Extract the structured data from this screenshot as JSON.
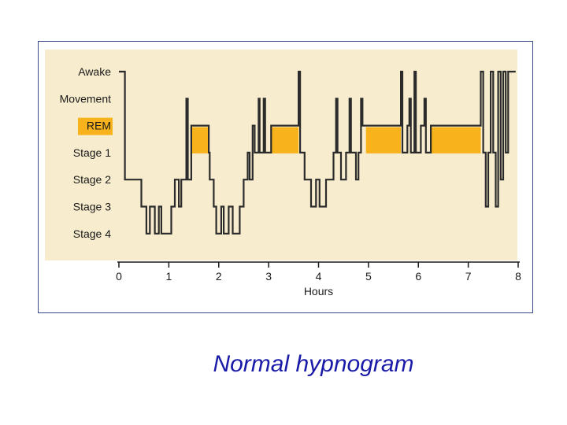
{
  "caption": "Normal hypnogram",
  "colors": {
    "panel_bg": "#f7eccd",
    "rem_fill": "#f7b21c",
    "trace": "#2b2b2b",
    "caption": "#1a1aa8",
    "frame": "#3a4a8a"
  },
  "chart_data": {
    "type": "line",
    "title": "",
    "xlabel": "Hours",
    "ylabel": "",
    "xlim": [
      0,
      8
    ],
    "x_ticks": [
      "0",
      "1",
      "2",
      "3",
      "4",
      "5",
      "6",
      "7",
      "8"
    ],
    "stages": [
      "Awake",
      "Movement",
      "REM",
      "Stage 1",
      "Stage 2",
      "Stage 3",
      "Stage 4"
    ],
    "highlighted_stage": "REM",
    "rem_periods": [
      {
        "start": 1.45,
        "end": 1.8
      },
      {
        "start": 3.05,
        "end": 3.6
      },
      {
        "start": 4.95,
        "end": 5.65
      },
      {
        "start": 6.25,
        "end": 7.25
      }
    ],
    "series": [
      {
        "points": [
          [
            0,
            0
          ],
          [
            0.12,
            0
          ],
          [
            0.12,
            4
          ],
          [
            0.45,
            4
          ],
          [
            0.45,
            5
          ],
          [
            0.55,
            5
          ],
          [
            0.55,
            6
          ],
          [
            0.62,
            6
          ],
          [
            0.62,
            5
          ],
          [
            0.72,
            5
          ],
          [
            0.72,
            6
          ],
          [
            0.8,
            6
          ],
          [
            0.8,
            5
          ],
          [
            0.85,
            5
          ],
          [
            0.85,
            6
          ],
          [
            1.05,
            6
          ],
          [
            1.05,
            5
          ],
          [
            1.12,
            5
          ],
          [
            1.12,
            4
          ],
          [
            1.2,
            4
          ],
          [
            1.2,
            5
          ],
          [
            1.25,
            5
          ],
          [
            1.25,
            4
          ],
          [
            1.35,
            4
          ],
          [
            1.35,
            1
          ],
          [
            1.38,
            1
          ],
          [
            1.38,
            4
          ],
          [
            1.45,
            4
          ],
          [
            1.45,
            2
          ],
          [
            1.8,
            2
          ],
          [
            1.8,
            3
          ],
          [
            1.82,
            3
          ],
          [
            1.82,
            4
          ],
          [
            1.9,
            4
          ],
          [
            1.9,
            5
          ],
          [
            1.95,
            5
          ],
          [
            1.95,
            6
          ],
          [
            2.05,
            6
          ],
          [
            2.05,
            5
          ],
          [
            2.1,
            5
          ],
          [
            2.1,
            6
          ],
          [
            2.2,
            6
          ],
          [
            2.2,
            5
          ],
          [
            2.28,
            5
          ],
          [
            2.28,
            6
          ],
          [
            2.42,
            6
          ],
          [
            2.42,
            5
          ],
          [
            2.5,
            5
          ],
          [
            2.5,
            4
          ],
          [
            2.58,
            4
          ],
          [
            2.58,
            3
          ],
          [
            2.62,
            3
          ],
          [
            2.62,
            4
          ],
          [
            2.68,
            4
          ],
          [
            2.68,
            2
          ],
          [
            2.72,
            2
          ],
          [
            2.72,
            3
          ],
          [
            2.8,
            3
          ],
          [
            2.8,
            1
          ],
          [
            2.82,
            1
          ],
          [
            2.82,
            3
          ],
          [
            2.9,
            3
          ],
          [
            2.9,
            1
          ],
          [
            2.93,
            1
          ],
          [
            2.93,
            3
          ],
          [
            3.05,
            3
          ],
          [
            3.05,
            2
          ],
          [
            3.6,
            2
          ],
          [
            3.6,
            0
          ],
          [
            3.63,
            0
          ],
          [
            3.63,
            3
          ],
          [
            3.72,
            3
          ],
          [
            3.72,
            4
          ],
          [
            3.85,
            4
          ],
          [
            3.85,
            5
          ],
          [
            3.95,
            5
          ],
          [
            3.95,
            4
          ],
          [
            4.02,
            4
          ],
          [
            4.02,
            5
          ],
          [
            4.15,
            5
          ],
          [
            4.15,
            4
          ],
          [
            4.3,
            4
          ],
          [
            4.3,
            3
          ],
          [
            4.35,
            3
          ],
          [
            4.35,
            1
          ],
          [
            4.38,
            1
          ],
          [
            4.38,
            3
          ],
          [
            4.45,
            3
          ],
          [
            4.45,
            4
          ],
          [
            4.55,
            4
          ],
          [
            4.55,
            3
          ],
          [
            4.62,
            3
          ],
          [
            4.62,
            1
          ],
          [
            4.65,
            1
          ],
          [
            4.65,
            3
          ],
          [
            4.75,
            3
          ],
          [
            4.75,
            4
          ],
          [
            4.8,
            4
          ],
          [
            4.8,
            3
          ],
          [
            4.85,
            3
          ],
          [
            4.85,
            1
          ],
          [
            4.88,
            1
          ],
          [
            4.88,
            2
          ],
          [
            4.95,
            2
          ],
          [
            4.95,
            2
          ],
          [
            5.65,
            2
          ],
          [
            5.65,
            0
          ],
          [
            5.68,
            0
          ],
          [
            5.68,
            3
          ],
          [
            5.78,
            3
          ],
          [
            5.78,
            2
          ],
          [
            5.82,
            2
          ],
          [
            5.82,
            1
          ],
          [
            5.85,
            1
          ],
          [
            5.85,
            3
          ],
          [
            5.92,
            3
          ],
          [
            5.92,
            0
          ],
          [
            5.95,
            0
          ],
          [
            5.95,
            3
          ],
          [
            6.05,
            3
          ],
          [
            6.05,
            2
          ],
          [
            6.12,
            2
          ],
          [
            6.12,
            1
          ],
          [
            6.15,
            1
          ],
          [
            6.15,
            3
          ],
          [
            6.25,
            3
          ],
          [
            6.25,
            2
          ],
          [
            7.25,
            2
          ],
          [
            7.25,
            0
          ],
          [
            7.3,
            0
          ],
          [
            7.3,
            3
          ],
          [
            7.35,
            3
          ],
          [
            7.35,
            5
          ],
          [
            7.4,
            5
          ],
          [
            7.4,
            3
          ],
          [
            7.45,
            3
          ],
          [
            7.45,
            0
          ],
          [
            7.5,
            0
          ],
          [
            7.5,
            3
          ],
          [
            7.55,
            3
          ],
          [
            7.55,
            5
          ],
          [
            7.6,
            5
          ],
          [
            7.6,
            0
          ],
          [
            7.65,
            0
          ],
          [
            7.65,
            4
          ],
          [
            7.7,
            4
          ],
          [
            7.7,
            0
          ],
          [
            7.75,
            0
          ],
          [
            7.75,
            3
          ],
          [
            7.8,
            3
          ],
          [
            7.8,
            0
          ],
          [
            7.95,
            0
          ]
        ]
      }
    ],
    "grid": false,
    "legend": "none"
  }
}
